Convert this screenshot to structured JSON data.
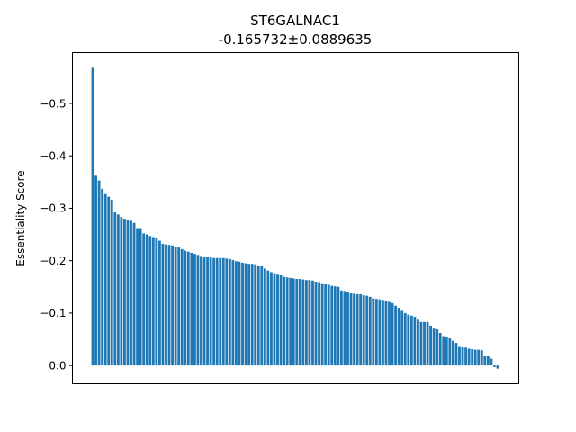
{
  "chart_data": {
    "type": "bar",
    "title": "ST6GALNAC1",
    "subtitle": "-0.165732±0.0889635",
    "xlabel": "",
    "ylabel": "Essentiality Score",
    "y_inverted": true,
    "ylim": [
      0.035,
      -0.597
    ],
    "yticks": [
      0.0,
      -0.1,
      -0.2,
      -0.3,
      -0.4,
      -0.5
    ],
    "ytick_labels": [
      "0.0",
      "−0.1",
      "−0.2",
      "−0.3",
      "−0.4",
      "−0.5"
    ],
    "xticks_visible": false,
    "color": "#1f77b4",
    "values": [
      -0.568,
      -0.362,
      -0.353,
      -0.337,
      -0.327,
      -0.322,
      -0.316,
      -0.292,
      -0.288,
      -0.283,
      -0.28,
      -0.278,
      -0.276,
      -0.272,
      -0.262,
      -0.262,
      -0.252,
      -0.25,
      -0.247,
      -0.245,
      -0.243,
      -0.238,
      -0.232,
      -0.231,
      -0.23,
      -0.229,
      -0.227,
      -0.225,
      -0.222,
      -0.219,
      -0.217,
      -0.215,
      -0.213,
      -0.211,
      -0.209,
      -0.208,
      -0.207,
      -0.206,
      -0.205,
      -0.205,
      -0.205,
      -0.205,
      -0.204,
      -0.203,
      -0.201,
      -0.199,
      -0.198,
      -0.196,
      -0.195,
      -0.194,
      -0.194,
      -0.193,
      -0.191,
      -0.189,
      -0.185,
      -0.181,
      -0.178,
      -0.176,
      -0.175,
      -0.172,
      -0.169,
      -0.168,
      -0.167,
      -0.166,
      -0.165,
      -0.165,
      -0.164,
      -0.163,
      -0.163,
      -0.162,
      -0.16,
      -0.159,
      -0.157,
      -0.155,
      -0.154,
      -0.152,
      -0.151,
      -0.15,
      -0.143,
      -0.142,
      -0.141,
      -0.139,
      -0.137,
      -0.136,
      -0.136,
      -0.134,
      -0.133,
      -0.131,
      -0.128,
      -0.127,
      -0.126,
      -0.125,
      -0.124,
      -0.123,
      -0.119,
      -0.114,
      -0.11,
      -0.106,
      -0.1,
      -0.097,
      -0.095,
      -0.093,
      -0.089,
      -0.083,
      -0.083,
      -0.083,
      -0.076,
      -0.072,
      -0.069,
      -0.062,
      -0.056,
      -0.055,
      -0.052,
      -0.047,
      -0.043,
      -0.037,
      -0.036,
      -0.034,
      -0.032,
      -0.031,
      -0.03,
      -0.03,
      -0.029,
      -0.019,
      -0.018,
      -0.013,
      0.003,
      0.006
    ]
  }
}
